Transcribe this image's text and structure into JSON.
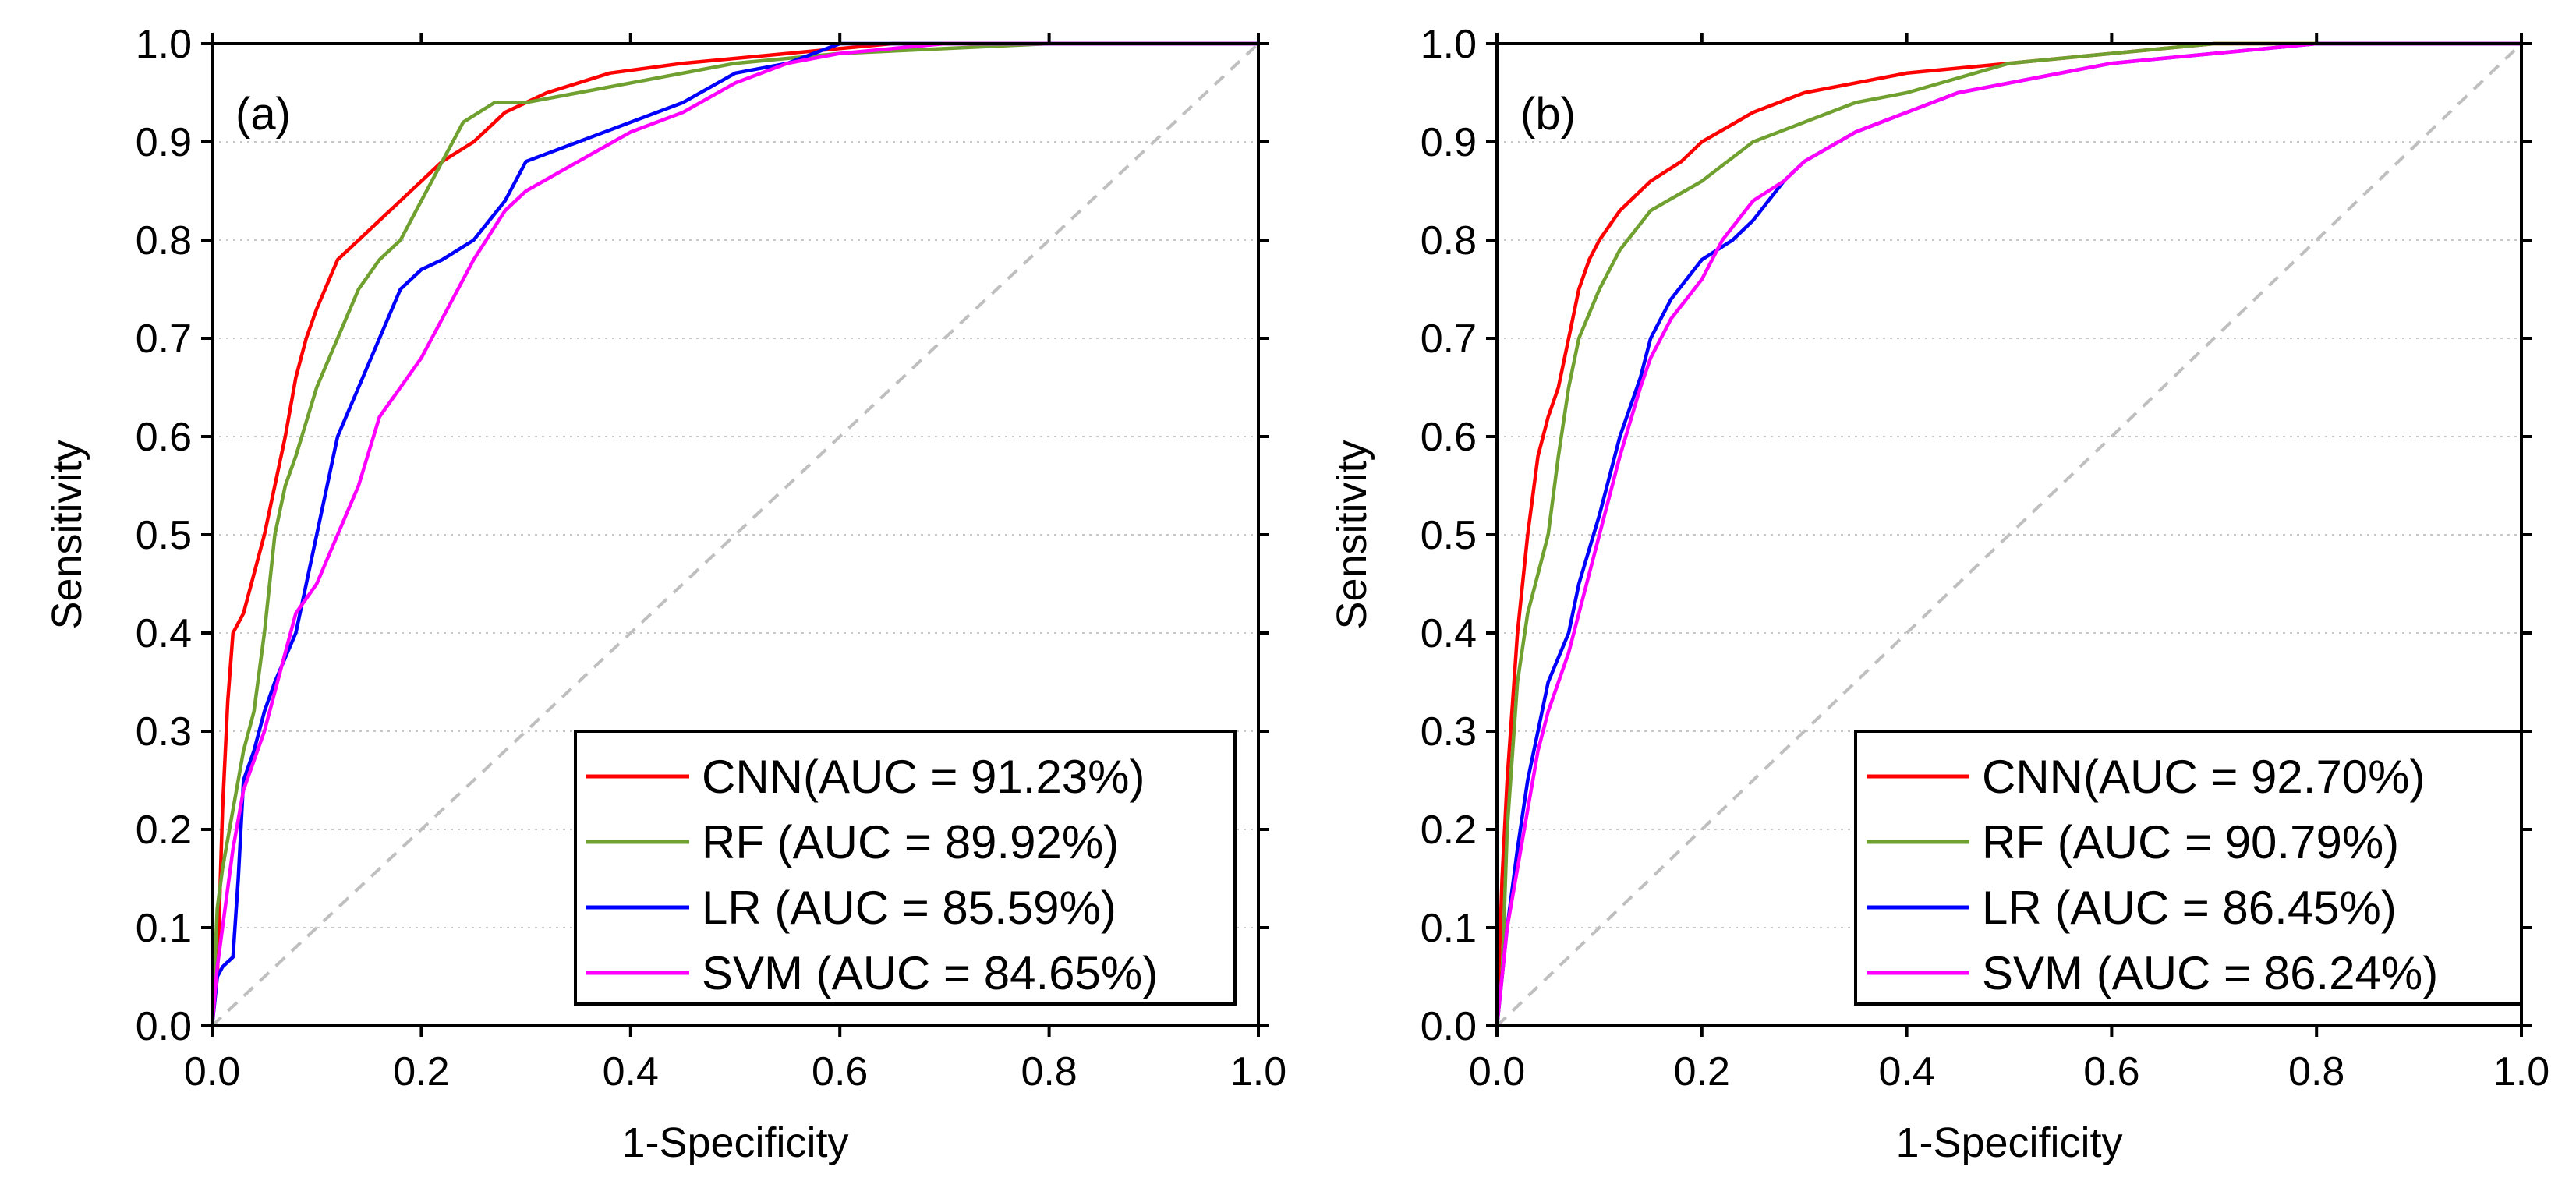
{
  "chart_data": [
    {
      "type": "line",
      "panel_label": "(a)",
      "xlabel": "1-Specificity",
      "ylabel": "Sensitivity",
      "xlim": [
        0,
        1
      ],
      "ylim": [
        0,
        1
      ],
      "x_ticks": [
        "0.0",
        "0.2",
        "0.4",
        "0.6",
        "0.8",
        "1.0"
      ],
      "y_ticks": [
        "0.0",
        "0.1",
        "0.2",
        "0.3",
        "0.4",
        "0.5",
        "0.6",
        "0.7",
        "0.8",
        "0.9",
        "1.0"
      ],
      "grid": "horizontal-dotted",
      "legend_position": "bottom-right",
      "reference_line": {
        "style": "dashed",
        "color": "#bfbfbf",
        "points": [
          [
            0,
            0
          ],
          [
            1,
            1
          ]
        ]
      },
      "series": [
        {
          "name": "CNN(AUC = 91.23%)",
          "color": "#ff0000",
          "points": [
            [
              0,
              0
            ],
            [
              0.005,
              0.05
            ],
            [
              0.01,
              0.22
            ],
            [
              0.015,
              0.33
            ],
            [
              0.02,
              0.4
            ],
            [
              0.03,
              0.42
            ],
            [
              0.04,
              0.46
            ],
            [
              0.05,
              0.5
            ],
            [
              0.06,
              0.55
            ],
            [
              0.07,
              0.6
            ],
            [
              0.08,
              0.66
            ],
            [
              0.09,
              0.7
            ],
            [
              0.1,
              0.73
            ],
            [
              0.12,
              0.78
            ],
            [
              0.14,
              0.8
            ],
            [
              0.16,
              0.82
            ],
            [
              0.18,
              0.84
            ],
            [
              0.2,
              0.86
            ],
            [
              0.22,
              0.88
            ],
            [
              0.25,
              0.9
            ],
            [
              0.28,
              0.93
            ],
            [
              0.32,
              0.95
            ],
            [
              0.38,
              0.97
            ],
            [
              0.45,
              0.98
            ],
            [
              0.55,
              0.99
            ],
            [
              0.65,
              1.0
            ],
            [
              1,
              1
            ]
          ]
        },
        {
          "name": "RF (AUC = 89.92%)",
          "color": "#70a030",
          "points": [
            [
              0,
              0
            ],
            [
              0.005,
              0.12
            ],
            [
              0.01,
              0.16
            ],
            [
              0.02,
              0.22
            ],
            [
              0.03,
              0.28
            ],
            [
              0.04,
              0.32
            ],
            [
              0.05,
              0.4
            ],
            [
              0.06,
              0.5
            ],
            [
              0.07,
              0.55
            ],
            [
              0.08,
              0.58
            ],
            [
              0.1,
              0.65
            ],
            [
              0.12,
              0.7
            ],
            [
              0.14,
              0.75
            ],
            [
              0.16,
              0.78
            ],
            [
              0.18,
              0.8
            ],
            [
              0.2,
              0.84
            ],
            [
              0.22,
              0.88
            ],
            [
              0.24,
              0.92
            ],
            [
              0.27,
              0.94
            ],
            [
              0.3,
              0.94
            ],
            [
              0.35,
              0.95
            ],
            [
              0.4,
              0.96
            ],
            [
              0.45,
              0.97
            ],
            [
              0.5,
              0.98
            ],
            [
              0.6,
              0.99
            ],
            [
              0.8,
              1.0
            ],
            [
              1,
              1
            ]
          ]
        },
        {
          "name": "LR (AUC = 85.59%)",
          "color": "#0000ff",
          "points": [
            [
              0,
              0
            ],
            [
              0.005,
              0.05
            ],
            [
              0.01,
              0.06
            ],
            [
              0.02,
              0.07
            ],
            [
              0.025,
              0.15
            ],
            [
              0.03,
              0.25
            ],
            [
              0.04,
              0.28
            ],
            [
              0.05,
              0.32
            ],
            [
              0.06,
              0.35
            ],
            [
              0.08,
              0.4
            ],
            [
              0.09,
              0.45
            ],
            [
              0.1,
              0.5
            ],
            [
              0.11,
              0.55
            ],
            [
              0.12,
              0.6
            ],
            [
              0.14,
              0.65
            ],
            [
              0.16,
              0.7
            ],
            [
              0.18,
              0.75
            ],
            [
              0.2,
              0.77
            ],
            [
              0.22,
              0.78
            ],
            [
              0.25,
              0.8
            ],
            [
              0.28,
              0.84
            ],
            [
              0.3,
              0.88
            ],
            [
              0.35,
              0.9
            ],
            [
              0.4,
              0.92
            ],
            [
              0.45,
              0.94
            ],
            [
              0.5,
              0.97
            ],
            [
              0.55,
              0.98
            ],
            [
              0.6,
              1.0
            ],
            [
              1,
              1
            ]
          ]
        },
        {
          "name": "SVM (AUC = 84.65%)",
          "color": "#ff00ff",
          "points": [
            [
              0,
              0
            ],
            [
              0.005,
              0.06
            ],
            [
              0.01,
              0.1
            ],
            [
              0.02,
              0.18
            ],
            [
              0.03,
              0.24
            ],
            [
              0.05,
              0.3
            ],
            [
              0.07,
              0.38
            ],
            [
              0.08,
              0.42
            ],
            [
              0.1,
              0.45
            ],
            [
              0.12,
              0.5
            ],
            [
              0.14,
              0.55
            ],
            [
              0.16,
              0.62
            ],
            [
              0.18,
              0.65
            ],
            [
              0.2,
              0.68
            ],
            [
              0.22,
              0.72
            ],
            [
              0.25,
              0.78
            ],
            [
              0.28,
              0.83
            ],
            [
              0.3,
              0.85
            ],
            [
              0.35,
              0.88
            ],
            [
              0.4,
              0.91
            ],
            [
              0.45,
              0.93
            ],
            [
              0.5,
              0.96
            ],
            [
              0.55,
              0.98
            ],
            [
              0.6,
              0.99
            ],
            [
              0.7,
              1.0
            ],
            [
              1,
              1
            ]
          ]
        }
      ]
    },
    {
      "type": "line",
      "panel_label": "(b)",
      "xlabel": "1-Specificity",
      "ylabel": "Sensitivity",
      "xlim": [
        0,
        1
      ],
      "ylim": [
        0,
        1
      ],
      "x_ticks": [
        "0.0",
        "0.2",
        "0.4",
        "0.6",
        "0.8",
        "1.0"
      ],
      "y_ticks": [
        "0.0",
        "0.1",
        "0.2",
        "0.3",
        "0.4",
        "0.5",
        "0.6",
        "0.7",
        "0.8",
        "0.9",
        "1.0"
      ],
      "grid": "horizontal-dotted",
      "legend_position": "bottom-right",
      "reference_line": {
        "style": "dashed",
        "color": "#bfbfbf",
        "points": [
          [
            0,
            0
          ],
          [
            1,
            1
          ]
        ]
      },
      "series": [
        {
          "name": "CNN(AUC = 92.70%)",
          "color": "#ff0000",
          "points": [
            [
              0,
              0
            ],
            [
              0.005,
              0.15
            ],
            [
              0.01,
              0.25
            ],
            [
              0.02,
              0.4
            ],
            [
              0.03,
              0.5
            ],
            [
              0.04,
              0.58
            ],
            [
              0.05,
              0.62
            ],
            [
              0.06,
              0.65
            ],
            [
              0.07,
              0.7
            ],
            [
              0.08,
              0.75
            ],
            [
              0.09,
              0.78
            ],
            [
              0.1,
              0.8
            ],
            [
              0.12,
              0.83
            ],
            [
              0.15,
              0.86
            ],
            [
              0.18,
              0.88
            ],
            [
              0.2,
              0.9
            ],
            [
              0.25,
              0.93
            ],
            [
              0.3,
              0.95
            ],
            [
              0.35,
              0.96
            ],
            [
              0.4,
              0.97
            ],
            [
              0.5,
              0.98
            ],
            [
              0.6,
              0.99
            ],
            [
              0.7,
              1.0
            ],
            [
              1,
              1
            ]
          ]
        },
        {
          "name": "RF (AUC = 90.79%)",
          "color": "#70a030",
          "points": [
            [
              0,
              0
            ],
            [
              0.005,
              0.05
            ],
            [
              0.01,
              0.2
            ],
            [
              0.02,
              0.35
            ],
            [
              0.03,
              0.42
            ],
            [
              0.04,
              0.46
            ],
            [
              0.05,
              0.5
            ],
            [
              0.06,
              0.58
            ],
            [
              0.07,
              0.65
            ],
            [
              0.08,
              0.7
            ],
            [
              0.1,
              0.75
            ],
            [
              0.12,
              0.79
            ],
            [
              0.15,
              0.83
            ],
            [
              0.2,
              0.86
            ],
            [
              0.25,
              0.9
            ],
            [
              0.3,
              0.92
            ],
            [
              0.35,
              0.94
            ],
            [
              0.4,
              0.95
            ],
            [
              0.5,
              0.98
            ],
            [
              0.6,
              0.99
            ],
            [
              0.7,
              1.0
            ],
            [
              1,
              1
            ]
          ]
        },
        {
          "name": "LR (AUC = 86.45%)",
          "color": "#0000ff",
          "points": [
            [
              0,
              0
            ],
            [
              0.005,
              0.05
            ],
            [
              0.01,
              0.1
            ],
            [
              0.02,
              0.18
            ],
            [
              0.03,
              0.25
            ],
            [
              0.04,
              0.3
            ],
            [
              0.05,
              0.35
            ],
            [
              0.07,
              0.4
            ],
            [
              0.08,
              0.45
            ],
            [
              0.1,
              0.52
            ],
            [
              0.12,
              0.6
            ],
            [
              0.14,
              0.66
            ],
            [
              0.15,
              0.7
            ],
            [
              0.17,
              0.74
            ],
            [
              0.2,
              0.78
            ],
            [
              0.23,
              0.8
            ],
            [
              0.25,
              0.82
            ],
            [
              0.28,
              0.86
            ],
            [
              0.3,
              0.88
            ],
            [
              0.35,
              0.91
            ],
            [
              0.4,
              0.93
            ],
            [
              0.45,
              0.95
            ],
            [
              0.5,
              0.96
            ],
            [
              0.6,
              0.98
            ],
            [
              0.7,
              0.99
            ],
            [
              0.8,
              1.0
            ],
            [
              1,
              1
            ]
          ]
        },
        {
          "name": "SVM (AUC = 86.24%)",
          "color": "#ff00ff",
          "points": [
            [
              0,
              0
            ],
            [
              0.005,
              0.05
            ],
            [
              0.01,
              0.1
            ],
            [
              0.02,
              0.16
            ],
            [
              0.03,
              0.22
            ],
            [
              0.04,
              0.28
            ],
            [
              0.05,
              0.32
            ],
            [
              0.07,
              0.38
            ],
            [
              0.08,
              0.42
            ],
            [
              0.1,
              0.5
            ],
            [
              0.12,
              0.58
            ],
            [
              0.14,
              0.65
            ],
            [
              0.15,
              0.68
            ],
            [
              0.17,
              0.72
            ],
            [
              0.2,
              0.76
            ],
            [
              0.22,
              0.8
            ],
            [
              0.25,
              0.84
            ],
            [
              0.28,
              0.86
            ],
            [
              0.3,
              0.88
            ],
            [
              0.35,
              0.91
            ],
            [
              0.4,
              0.93
            ],
            [
              0.45,
              0.95
            ],
            [
              0.5,
              0.96
            ],
            [
              0.6,
              0.98
            ],
            [
              0.7,
              0.99
            ],
            [
              0.8,
              1.0
            ],
            [
              1,
              1
            ]
          ]
        }
      ]
    }
  ]
}
